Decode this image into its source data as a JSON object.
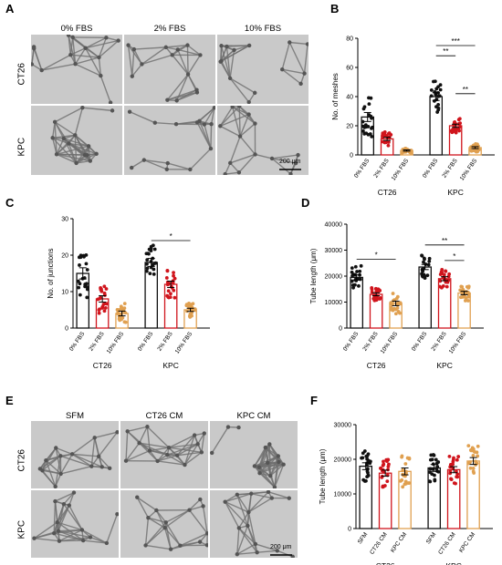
{
  "panels": {
    "A": {
      "letter": "A",
      "cols": [
        "0% FBS",
        "2% FBS",
        "10% FBS"
      ],
      "rows": [
        "CT26",
        "KPC"
      ],
      "scale": "200 μm"
    },
    "E": {
      "letter": "E",
      "cols": [
        "SFM",
        "CT26 CM",
        "KPC CM"
      ],
      "rows": [
        "CT26",
        "KPC"
      ],
      "scale": "200 μm"
    }
  },
  "colors": {
    "black": "#111111",
    "red": "#d0141c",
    "orange": "#e0a050"
  },
  "chart_data": [
    {
      "id": "B",
      "letter": "B",
      "type": "bar",
      "ylabel": "No. of meshes",
      "ylim": [
        0,
        80
      ],
      "yticks": [
        0,
        20,
        40,
        60,
        80
      ],
      "categories": [
        "0% FBS",
        "2% FBS",
        "10% FBS",
        "0% FBS",
        "2% FBS",
        "10% FBS"
      ],
      "groups": [
        "CT26",
        "KPC"
      ],
      "values": [
        26,
        11,
        3,
        40,
        20,
        5
      ],
      "spread": [
        14,
        5,
        2,
        12,
        5,
        3
      ],
      "sig": [
        {
          "from": 3,
          "to": 4,
          "label": "**",
          "y": 68
        },
        {
          "from": 3,
          "to": 5,
          "label": "***",
          "y": 75
        },
        {
          "from": 4,
          "to": 5,
          "label": "**",
          "y": 42
        }
      ]
    },
    {
      "id": "C",
      "letter": "C",
      "type": "bar",
      "ylabel": "No. of junctions",
      "ylim": [
        0,
        30
      ],
      "yticks": [
        0,
        10,
        20,
        30
      ],
      "categories": [
        "0% FBS",
        "2% FBS",
        "10% FBS",
        "0% FBS",
        "2% FBS",
        "10% FBS"
      ],
      "groups": [
        "CT26",
        "KPC"
      ],
      "values": [
        15,
        8,
        4,
        18,
        12,
        5
      ],
      "spread": [
        7,
        4,
        3,
        5,
        4,
        2
      ],
      "sig": [
        {
          "from": 3,
          "to": 5,
          "label": "*",
          "y": 24
        }
      ]
    },
    {
      "id": "D",
      "letter": "D",
      "type": "bar",
      "ylabel": "Tube length (μm)",
      "ylim": [
        0,
        40000
      ],
      "yticks": [
        0,
        10000,
        20000,
        30000,
        40000
      ],
      "categories": [
        "0% FBS",
        "2% FBS",
        "10% FBS",
        "0% FBS",
        "2% FBS",
        "10% FBS"
      ],
      "groups": [
        "CT26",
        "KPC"
      ],
      "values": [
        19500,
        13000,
        9500,
        23500,
        19000,
        13500
      ],
      "spread": [
        4500,
        2500,
        4000,
        4500,
        3500,
        3000
      ],
      "sig": [
        {
          "from": 0,
          "to": 2,
          "label": "*",
          "y": 26500
        },
        {
          "from": 3,
          "to": 5,
          "label": "**",
          "y": 32000
        },
        {
          "from": 4,
          "to": 5,
          "label": "*",
          "y": 26000
        }
      ]
    },
    {
      "id": "F",
      "letter": "F",
      "type": "bar",
      "ylabel": "Tube length (μm)",
      "ylim": [
        0,
        30000
      ],
      "yticks": [
        0,
        10000,
        20000,
        30000
      ],
      "categories": [
        "SFM",
        "CT26 CM",
        "KPC CM",
        "SFM",
        "CT26 CM",
        "KPC CM"
      ],
      "groups": [
        "CT26",
        "KPC"
      ],
      "values": [
        18000,
        16000,
        16500,
        17500,
        17000,
        19500
      ],
      "spread": [
        4500,
        4000,
        4500,
        4500,
        4000,
        4500
      ],
      "sig": []
    }
  ]
}
